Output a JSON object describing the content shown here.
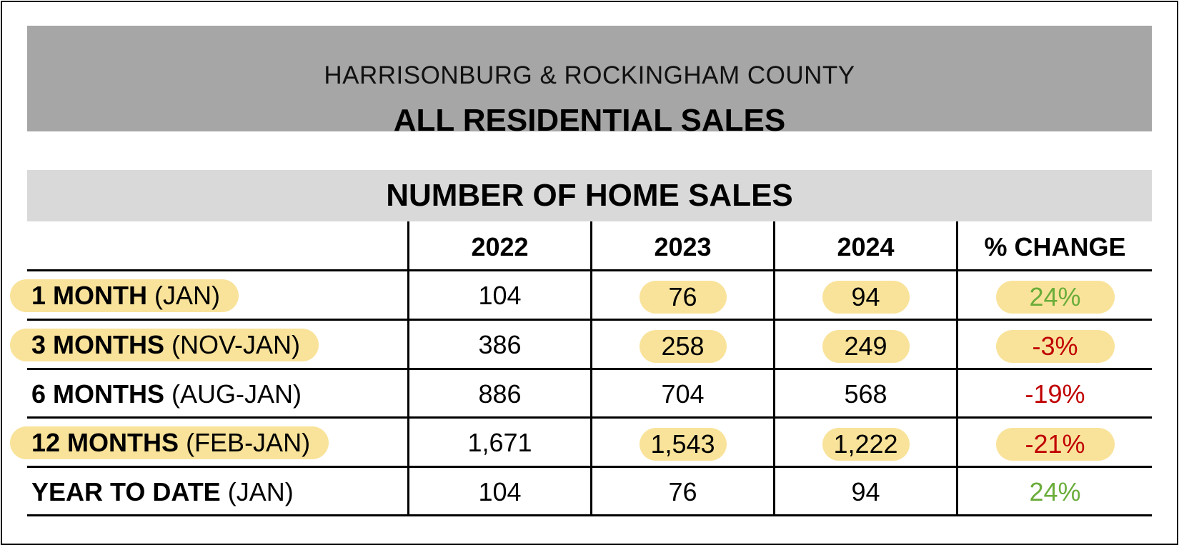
{
  "banner": {
    "subtitle": "HARRISONBURG & ROCKINGHAM COUNTY",
    "title": "ALL RESIDENTIAL SALES"
  },
  "section_title": "NUMBER OF HOME SALES",
  "table": {
    "columns": [
      "2022",
      "2023",
      "2024",
      "% CHANGE"
    ],
    "rows": [
      {
        "label_bold": "1 MONTH",
        "label_rest": "(JAN)",
        "v2022": "104",
        "v2023": "76",
        "v2024": "94",
        "change": "24%"
      },
      {
        "label_bold": "3 MONTHS",
        "label_rest": "(NOV-JAN)",
        "v2022": "386",
        "v2023": "258",
        "v2024": "249",
        "change": "-3%"
      },
      {
        "label_bold": "6 MONTHS",
        "label_rest": "(AUG-JAN)",
        "v2022": "886",
        "v2023": "704",
        "v2024": "568",
        "change": "-19%"
      },
      {
        "label_bold": "12 MONTHS",
        "label_rest": "(FEB-JAN)",
        "v2022": "1,671",
        "v2023": "1,543",
        "v2024": "1,222",
        "change": "-21%"
      },
      {
        "label_bold": "YEAR TO DATE",
        "label_rest": "(JAN)",
        "v2022": "104",
        "v2023": "76",
        "v2024": "94",
        "change": "24%"
      }
    ]
  },
  "colors": {
    "highlight": "#f9e39a",
    "positive": "#6aad3a",
    "negative": "#c00000",
    "banner_bg": "#a6a6a6",
    "section_bg": "#d9d9d9"
  }
}
